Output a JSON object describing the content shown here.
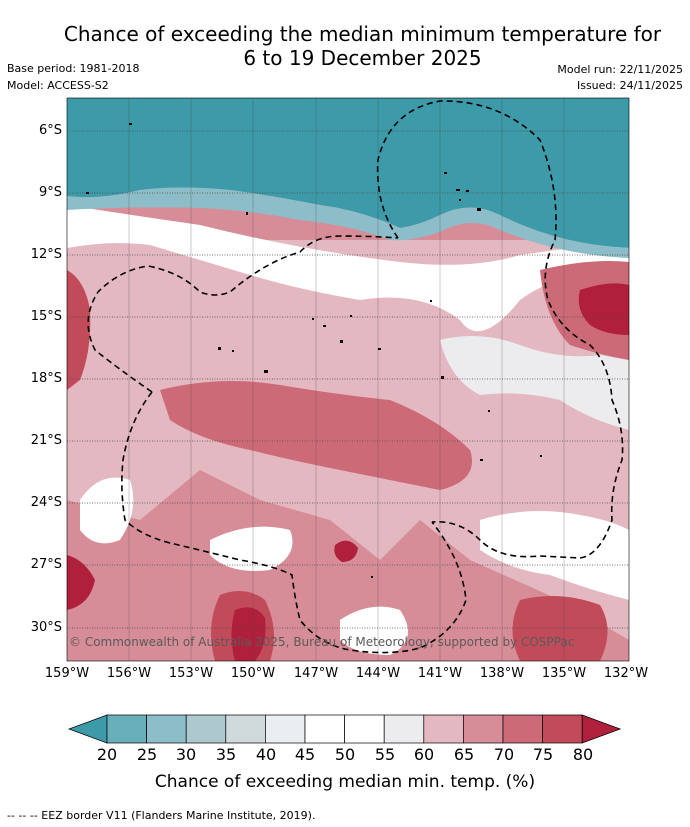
{
  "title_line1": "Chance of exceeding the median minimum temperature for",
  "title_line2": "6 to 19 December 2025",
  "base_period": "Base period: 1981-2018",
  "model": "Model: ACCESS-S2",
  "model_run": "Model run: 22/11/2025",
  "issued": "Issued: 24/11/2025",
  "latitude_labels": [
    "6°S",
    "9°S",
    "12°S",
    "15°S",
    "18°S",
    "21°S",
    "24°S",
    "27°S",
    "30°S"
  ],
  "longitude_labels": [
    "159°W",
    "156°W",
    "153°W",
    "150°W",
    "147°W",
    "144°W",
    "141°W",
    "138°W",
    "135°W",
    "132°W"
  ],
  "copyright": "© Commonwealth of Australia 2025, Bureau of Meteorology, supported by COSPPac",
  "colorbar": {
    "ticks": [
      "20",
      "25",
      "30",
      "35",
      "40",
      "45",
      "50",
      "55",
      "60",
      "65",
      "70",
      "75",
      "80"
    ],
    "colors": [
      "#3d9aa8",
      "#68aebb",
      "#8cbdc8",
      "#adc9ce",
      "#d0d9dc",
      "#e8eef1",
      "#ffffff",
      "#ffffff",
      "#ececee",
      "#e4b8c0",
      "#d68d98",
      "#cc6a77",
      "#c24b5a",
      "#b01f3b"
    ],
    "title": "Chance of exceeding median min. temp. (%)"
  },
  "eez_legend": "--  --  -- EEZ border V11 (Flanders Marine Institute, 2019)."
}
